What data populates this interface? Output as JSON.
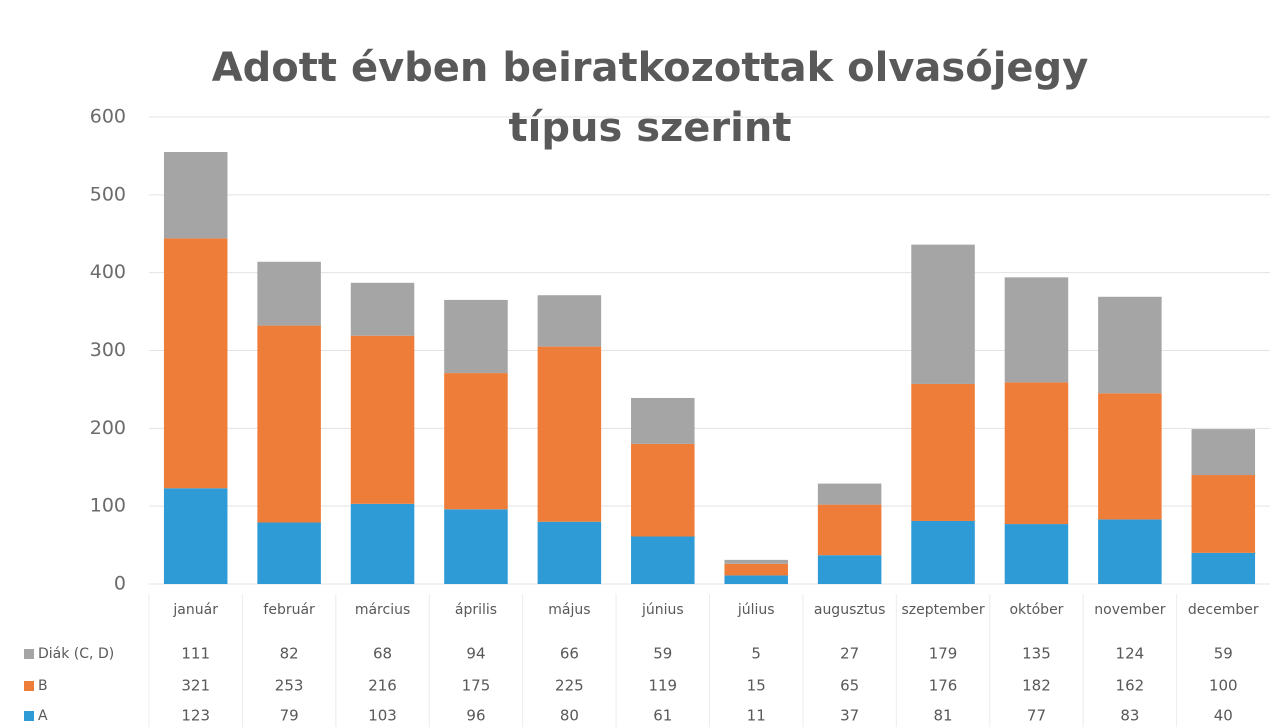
{
  "chart_data": {
    "type": "stacked_bar",
    "title": "Adott évben beiratkozottak olvasójegy típus szerint",
    "categories": [
      "január",
      "február",
      "március",
      "április",
      "május",
      "június",
      "július",
      "augusztus",
      "szeptember",
      "október",
      "november",
      "december"
    ],
    "series": [
      {
        "name": "Diák (C, D)",
        "color": "#a5a5a5",
        "values": [
          111,
          82,
          68,
          94,
          66,
          59,
          5,
          27,
          179,
          135,
          124,
          59
        ]
      },
      {
        "name": "B",
        "color": "#ef7d3a",
        "values": [
          321,
          253,
          216,
          175,
          225,
          119,
          15,
          65,
          176,
          182,
          162,
          100
        ]
      },
      {
        "name": "A",
        "color": "#2e9bd6",
        "values": [
          123,
          79,
          103,
          96,
          80,
          61,
          11,
          37,
          81,
          77,
          83,
          40
        ]
      }
    ],
    "ylim": [
      0,
      600
    ],
    "yticks": [
      0,
      100,
      200,
      300,
      400,
      500,
      600
    ],
    "grid": true
  }
}
